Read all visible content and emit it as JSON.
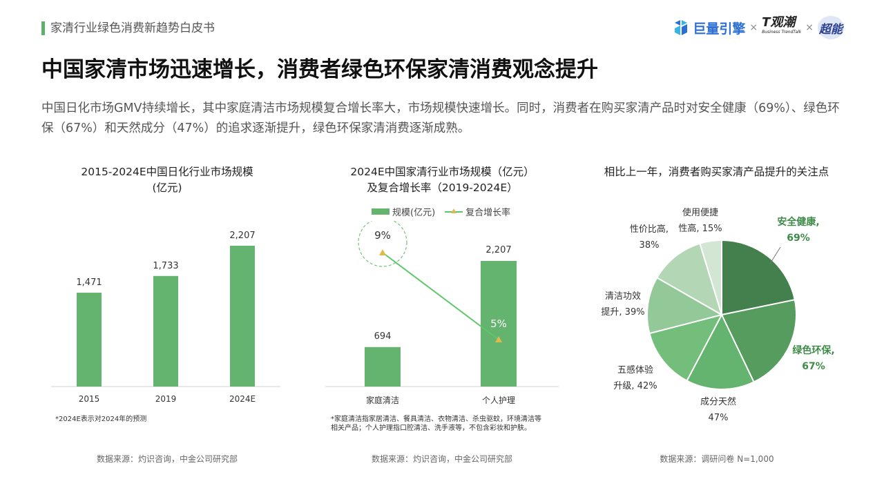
{
  "header": {
    "title": "家清行业绿色消费新趋势白皮书"
  },
  "logos": {
    "brand1": "巨量引擎",
    "brand2": "T观潮",
    "brand2_sub": "Business TrendTalk",
    "brand3": "超能",
    "separator": "×"
  },
  "main_title": "中国家清市场迅速增长，消费者绿色环保家清消费观念提升",
  "intro": "中国日化市场GMV持续增长，其中家庭清洁市场规模复合增长率大，市场规模快速增长。同时，消费者在购买家清产品时对安全健康（69%）、绿色环保（67%）和天然成分（47%）的追求逐渐提升，绿色环保家清消费逐渐成熟。",
  "colors": {
    "accent": "#5fb16a",
    "bar": "#64b36f",
    "line": "#5fc76a",
    "marker": "#e2b84a"
  },
  "chart_data": [
    {
      "type": "bar",
      "title_lines": [
        "2015-2024E中国日化行业市场规模",
        "(亿元)"
      ],
      "categories": [
        "2015",
        "2019",
        "2024E"
      ],
      "values": [
        1471,
        1733,
        2207
      ],
      "value_labels": [
        "1,471",
        "1,733",
        "2,207"
      ],
      "ylim": [
        0,
        2500
      ],
      "grid": false,
      "note": "*2024E表示对2024年的预测",
      "source": "数据来源：灼识咨询，中金公司研究部"
    },
    {
      "type": "bar",
      "title_lines": [
        "2024E中国家清行业市场规模（亿元）",
        "及复合增长率（2019-2024E）"
      ],
      "categories": [
        "家庭清洁",
        "个人护理"
      ],
      "series": [
        {
          "name": "规模(亿元)",
          "type": "bar",
          "values": [
            694,
            2207
          ],
          "labels": [
            "694",
            "2,207"
          ]
        },
        {
          "name": "复合增长率",
          "type": "line",
          "values": [
            9,
            5
          ],
          "labels": [
            "9%",
            "5%"
          ]
        }
      ],
      "ylim": [
        0,
        2500
      ],
      "legend_position": "top",
      "note_lines": [
        "*家庭清洁指家居清洁、餐具清洁、衣物清洁、杀虫驱蚊，环境清洁等",
        "相关产品；个人护理指口腔清洁、洗手液等，不包含彩妆和护肤。"
      ],
      "source": "数据来源：灼识咨询，中金公司研究部"
    },
    {
      "type": "pie",
      "title": "相比上一年，消费者购买家清产品提升的关注点",
      "slices": [
        {
          "label_lines": [
            "安全健康,",
            "69%"
          ],
          "value": 69,
          "color": "#44804d",
          "emphasis": true
        },
        {
          "label_lines": [
            "绿色环保,",
            "67%"
          ],
          "value": 67,
          "color": "#559c5e",
          "emphasis": true
        },
        {
          "label_lines": [
            "成分天然",
            "47%"
          ],
          "value": 47,
          "color": "#64b36f",
          "emphasis": false
        },
        {
          "label_lines": [
            "五感体验",
            "升级, 42%"
          ],
          "value": 42,
          "color": "#72be7a",
          "emphasis": false
        },
        {
          "label_lines": [
            "清洁功效",
            "提升, 39%"
          ],
          "value": 39,
          "color": "#93c999",
          "emphasis": false
        },
        {
          "label_lines": [
            "性价比高,",
            "38%"
          ],
          "value": 38,
          "color": "#b3d7b5",
          "emphasis": false
        },
        {
          "label_lines": [
            "使用便捷",
            "性高, 15%"
          ],
          "value": 15,
          "color": "#d3e6d3",
          "emphasis": false
        }
      ],
      "source": "数据来源：调研问卷 N=1,000"
    }
  ]
}
